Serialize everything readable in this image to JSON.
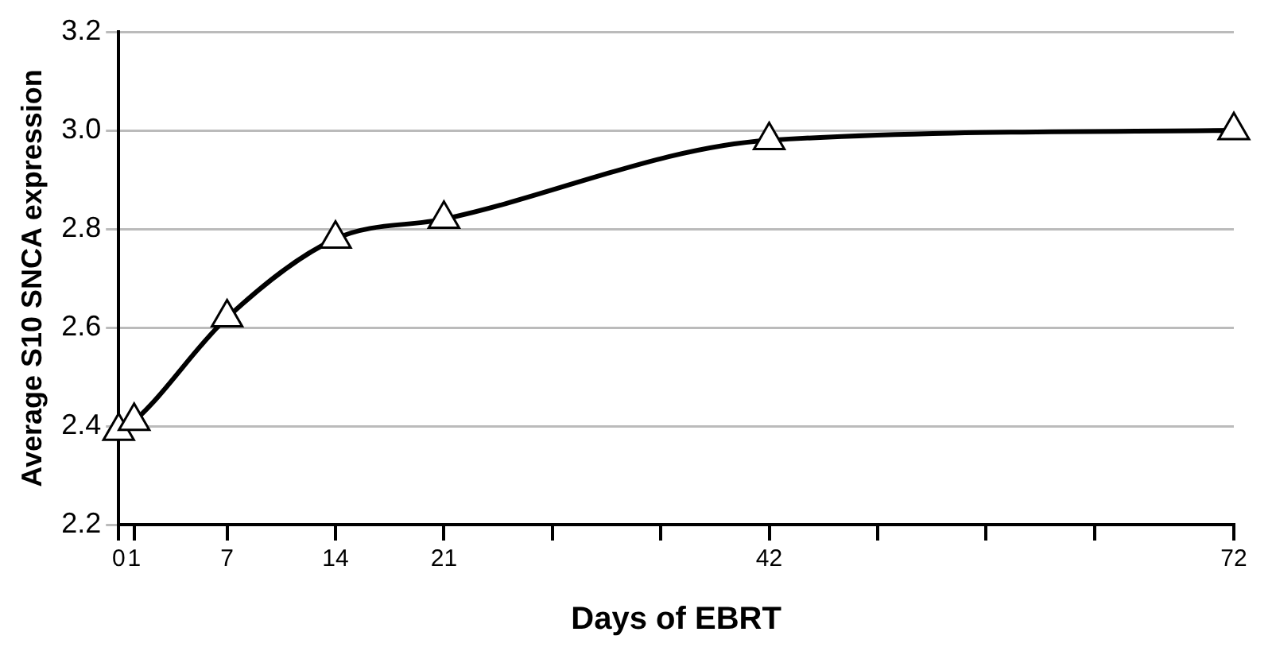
{
  "chart_data": {
    "type": "line",
    "xlabel": "Days of EBRT",
    "ylabel": "Average S10 SNCA expression",
    "x": [
      0,
      1,
      7,
      14,
      21,
      42,
      72
    ],
    "series": [
      {
        "color": "#000000",
        "values": [
          2.39,
          2.41,
          2.62,
          2.78,
          2.82,
          2.98,
          3.0
        ]
      }
    ],
    "xlim": [
      0,
      72
    ],
    "xticks": [
      0,
      1,
      7,
      14,
      21,
      {
        "value": 28,
        "label": null
      },
      {
        "value": 35,
        "label": null
      },
      42,
      {
        "value": 49,
        "label": null
      },
      {
        "value": 56,
        "label": null
      },
      {
        "value": 63,
        "label": null
      },
      72
    ],
    "ylim": [
      2.2,
      3.2
    ],
    "yticks": [
      2.2,
      2.4,
      2.6,
      2.8,
      {
        "value": 3,
        "label": "3.0"
      },
      3.2
    ],
    "grid": "y",
    "legend": false,
    "marker": "triangle",
    "line_style": "solid"
  }
}
